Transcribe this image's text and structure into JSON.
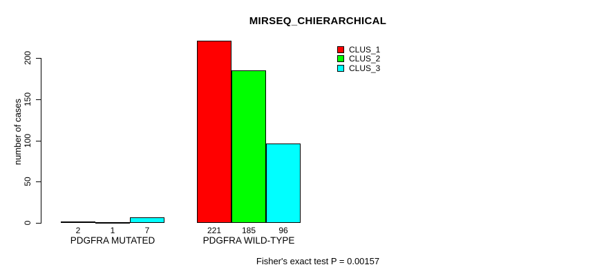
{
  "title": "MIRSEQ_CHIERARCHICAL",
  "annotation": "Fisher's exact test P = 0.00157",
  "colors": {
    "clus_1": "#ff0000",
    "clus_2": "#00ff00",
    "clus_3": "#00ffff",
    "axis": "#000000",
    "background": "#ffffff"
  },
  "chart_data": {
    "type": "bar",
    "title": "MIRSEQ_CHIERARCHICAL",
    "xlabel": "",
    "ylabel": "number of cases",
    "categories": [
      "PDGFRA MUTATED",
      "PDGFRA WILD-TYPE"
    ],
    "series": [
      {
        "name": "CLUS_1",
        "color": "#ff0000",
        "values": [
          2,
          221
        ]
      },
      {
        "name": "CLUS_2",
        "color": "#00ff00",
        "values": [
          1,
          185
        ]
      },
      {
        "name": "CLUS_3",
        "color": "#00ffff",
        "values": [
          7,
          96
        ]
      }
    ],
    "bar_value_labels": [
      [
        "2",
        "1",
        "7"
      ],
      [
        "221",
        "185",
        "96"
      ]
    ],
    "yticks": [
      0,
      50,
      100,
      150,
      200
    ],
    "ylim": [
      0,
      230
    ],
    "grid": false,
    "legend_position": "top-right",
    "legend_entries": [
      "CLUS_1",
      "CLUS_2",
      "CLUS_3"
    ],
    "annotation": "Fisher's exact test P = 0.00157"
  }
}
